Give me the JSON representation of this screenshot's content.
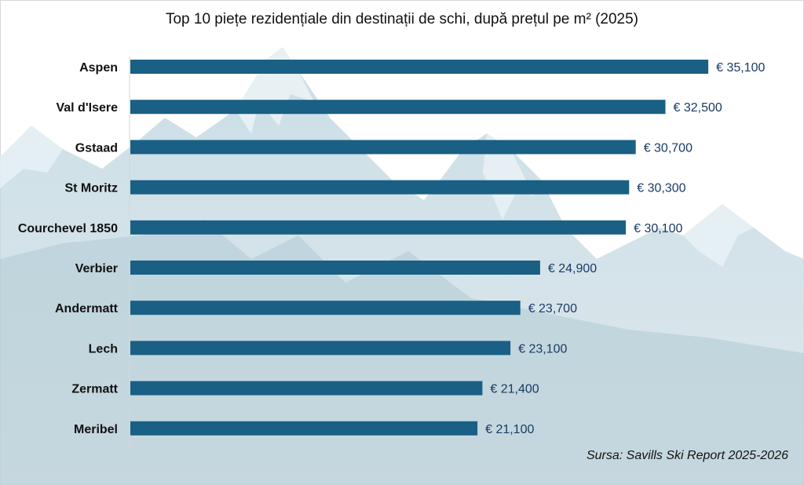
{
  "chart_data": {
    "type": "bar",
    "orientation": "horizontal",
    "title": "Top 10 piețe rezidențiale din destinații de schi, după prețul pe m² (2025)",
    "categories": [
      "Aspen",
      "Val d'Isere",
      "Gstaad",
      "St Moritz",
      "Courchevel 1850",
      "Verbier",
      "Andermatt",
      "Lech",
      "Zermatt",
      "Meribel"
    ],
    "values": [
      35100,
      32500,
      30700,
      30300,
      30100,
      24900,
      23700,
      23100,
      21400,
      21100
    ],
    "data_labels": [
      "€ 35,100",
      "€ 32,500",
      "€ 30,700",
      "€ 30,300",
      "€ 30,100",
      "€ 24,900",
      "€ 23,700",
      "€ 23,100",
      "€ 21,400",
      "€ 21,100"
    ],
    "unit": "€ per m²",
    "xlim": [
      0,
      40000
    ],
    "grid": false,
    "legend": "none",
    "bar_color": "#1a5f84",
    "label_color": "#1a3a66",
    "source": "Sursa: Savills Ski Report 2025-2026"
  }
}
